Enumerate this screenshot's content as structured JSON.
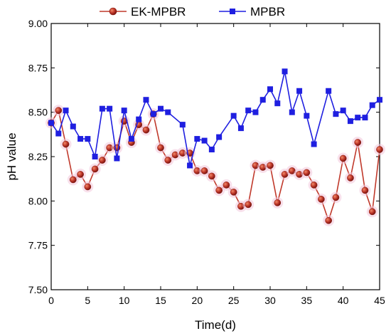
{
  "chart_data": {
    "type": "line",
    "xlabel": "Time(d)",
    "ylabel": "pH value",
    "xlim": [
      0,
      45
    ],
    "ylim": [
      7.5,
      9.0
    ],
    "x_ticks": [
      0,
      5,
      10,
      15,
      20,
      25,
      30,
      35,
      40,
      45
    ],
    "y_ticks": [
      "7.50",
      "7.75",
      "8.00",
      "8.25",
      "8.50",
      "8.75",
      "9.00"
    ],
    "grid": false,
    "legend_position": "top",
    "series": [
      {
        "name": "EK-MPBR",
        "color": "#c0392b",
        "marker": "circle",
        "x": [
          0,
          1,
          2,
          3,
          4,
          5,
          6,
          7,
          8,
          9,
          10,
          11,
          12,
          13,
          14,
          15,
          16,
          17,
          18,
          19,
          20,
          21,
          22,
          23,
          24,
          25,
          26,
          27,
          28,
          29,
          30,
          31,
          32,
          33,
          34,
          35,
          36,
          37,
          38,
          39,
          40,
          41,
          42,
          43,
          44,
          45
        ],
        "values": [
          8.44,
          8.51,
          8.32,
          8.12,
          8.15,
          8.08,
          8.18,
          8.23,
          8.3,
          8.3,
          8.45,
          8.33,
          8.43,
          8.4,
          8.49,
          8.3,
          8.23,
          8.26,
          8.27,
          8.27,
          8.17,
          8.17,
          8.14,
          8.06,
          8.09,
          8.05,
          7.97,
          7.98,
          8.2,
          8.19,
          8.2,
          7.99,
          8.15,
          8.17,
          8.15,
          8.16,
          8.09,
          8.01,
          7.89,
          8.02,
          8.24,
          8.13,
          8.33,
          8.06,
          7.94,
          8.29
        ]
      },
      {
        "name": "MPBR",
        "color": "#1f1fe0",
        "marker": "square",
        "x": [
          0,
          1,
          2,
          3,
          4,
          5,
          6,
          7,
          8,
          9,
          10,
          11,
          12,
          13,
          14,
          15,
          16,
          18,
          19,
          20,
          21,
          22,
          23,
          25,
          26,
          27,
          28,
          29,
          30,
          31,
          32,
          33,
          34,
          35,
          36,
          38,
          39,
          40,
          41,
          42,
          43,
          44,
          45
        ],
        "values": [
          8.44,
          8.38,
          8.51,
          8.42,
          8.35,
          8.35,
          8.25,
          8.52,
          8.52,
          8.24,
          8.51,
          8.35,
          8.46,
          8.57,
          8.49,
          8.52,
          8.5,
          8.43,
          8.2,
          8.35,
          8.34,
          8.29,
          8.36,
          8.48,
          8.41,
          8.51,
          8.5,
          8.57,
          8.63,
          8.55,
          8.73,
          8.5,
          8.62,
          8.48,
          8.32,
          8.62,
          8.49,
          8.51,
          8.45,
          8.47,
          8.47,
          8.54,
          8.57
        ]
      }
    ]
  }
}
